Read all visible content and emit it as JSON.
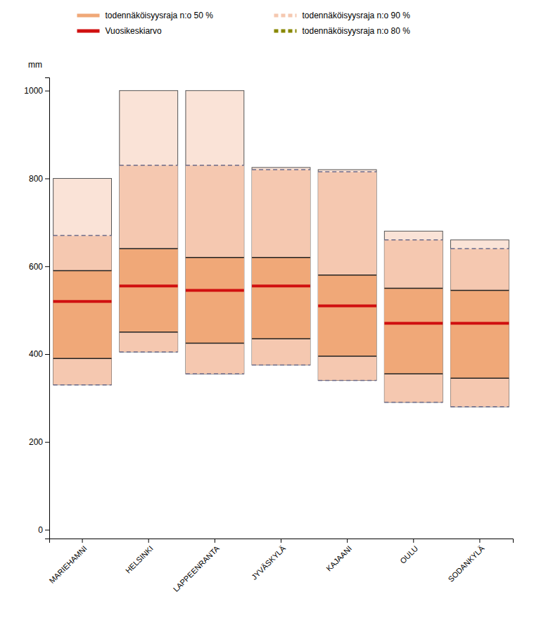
{
  "chart_data": {
    "type": "range",
    "categories": [
      "MARIEHAMNI",
      "HELSINKI",
      "LAPPEENRANTA",
      "JYVÄSKYLÄ",
      "KAJAANI",
      "OULU",
      "SODANKYLÄ"
    ],
    "y_label": "mm",
    "ylim": [
      -20,
      1030
    ],
    "yticks": [
      0,
      200,
      400,
      600,
      800,
      1000
    ],
    "series": [
      {
        "name": "todennäköisyysraja n:o 50 %",
        "color": "#f0a878",
        "line_style": "solid",
        "low": [
          390,
          450,
          425,
          435,
          395,
          355,
          345
        ],
        "high": [
          590,
          640,
          620,
          620,
          580,
          550,
          545
        ]
      },
      {
        "name": "todennäköisyysraja n:o 90 %",
        "color": "#f5c8b0",
        "line_style": "dashed",
        "low": [
          330,
          405,
          355,
          375,
          340,
          290,
          280
        ],
        "high": [
          670,
          830,
          830,
          820,
          815,
          660,
          640
        ]
      },
      {
        "name": "Vuosikeskiarvo",
        "color": "#d01010",
        "line_style": "solid",
        "values": [
          520,
          555,
          545,
          555,
          510,
          470,
          470
        ]
      },
      {
        "name": "todennäköisyysraja n:o 80 %",
        "color": "#888800",
        "line_style": "dashed"
      }
    ],
    "column_max": [
      800,
      1000,
      1000,
      825,
      820,
      680,
      660
    ]
  }
}
